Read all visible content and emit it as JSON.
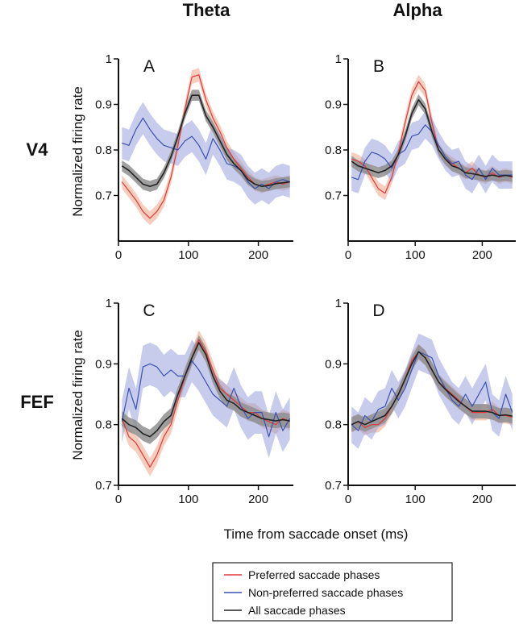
{
  "figure": {
    "column_titles": [
      "Theta",
      "Alpha"
    ],
    "row_titles": [
      "V4",
      "FEF"
    ],
    "xlabel": "Time from saccade onset (ms)",
    "ylabel": "Normalized firing rate"
  },
  "legend": {
    "items": [
      {
        "label": "Preferred saccade phases",
        "color": "#e0383a"
      },
      {
        "label": "Non-preferred saccade phases",
        "color": "#3a52b0"
      },
      {
        "label": "All saccade phases",
        "color": "#222222"
      }
    ]
  },
  "chart_data": [
    {
      "type": "line",
      "panel": "A",
      "column": "Theta",
      "row": "V4",
      "xlim": [
        0,
        250
      ],
      "ylim": [
        0.6,
        1.0
      ],
      "xticks": [
        0,
        100,
        200
      ],
      "yticks": [
        0.7,
        0.8,
        0.9,
        1.0
      ],
      "ytick_labels": [
        "0.7",
        "0.8",
        "0.9",
        "1"
      ],
      "x": [
        5,
        15,
        25,
        35,
        45,
        55,
        65,
        75,
        85,
        95,
        105,
        115,
        125,
        135,
        145,
        155,
        165,
        175,
        185,
        195,
        205,
        215,
        225,
        235,
        245
      ],
      "series": [
        {
          "name": "Preferred saccade phases",
          "color": "#e0383a",
          "band_color": "#f0a486",
          "values": [
            0.73,
            0.71,
            0.69,
            0.665,
            0.65,
            0.665,
            0.69,
            0.74,
            0.81,
            0.89,
            0.96,
            0.965,
            0.91,
            0.87,
            0.84,
            0.805,
            0.78,
            0.76,
            0.74,
            0.725,
            0.72,
            0.725,
            0.73,
            0.725,
            0.73
          ],
          "band": 0.015
        },
        {
          "name": "Non-preferred saccade phases",
          "color": "#3a52b0",
          "band_color": "#9aa3dd",
          "values": [
            0.815,
            0.81,
            0.845,
            0.87,
            0.845,
            0.825,
            0.81,
            0.805,
            0.8,
            0.82,
            0.83,
            0.81,
            0.78,
            0.825,
            0.8,
            0.77,
            0.765,
            0.755,
            0.73,
            0.715,
            0.725,
            0.715,
            0.73,
            0.735,
            0.73
          ],
          "band": 0.035
        },
        {
          "name": "All saccade phases",
          "color": "#222222",
          "band_color": "#8f8f8f",
          "values": [
            0.765,
            0.755,
            0.74,
            0.725,
            0.72,
            0.725,
            0.75,
            0.785,
            0.83,
            0.88,
            0.92,
            0.92,
            0.875,
            0.85,
            0.82,
            0.79,
            0.77,
            0.755,
            0.735,
            0.725,
            0.72,
            0.722,
            0.726,
            0.728,
            0.73
          ],
          "band": 0.012
        }
      ]
    },
    {
      "type": "line",
      "panel": "B",
      "column": "Alpha",
      "row": "V4",
      "xlim": [
        0,
        250
      ],
      "ylim": [
        0.6,
        1.0
      ],
      "xticks": [
        0,
        100,
        200
      ],
      "yticks": [
        0.7,
        0.8,
        0.9,
        1.0
      ],
      "ytick_labels": [
        "0.7",
        "0.8",
        "0.9",
        "1"
      ],
      "x": [
        5,
        15,
        25,
        35,
        45,
        55,
        65,
        75,
        85,
        95,
        105,
        115,
        125,
        135,
        145,
        155,
        165,
        175,
        185,
        195,
        205,
        215,
        225,
        235,
        245
      ],
      "series": [
        {
          "name": "Preferred saccade phases",
          "color": "#e0383a",
          "band_color": "#f0a486",
          "values": [
            0.78,
            0.775,
            0.765,
            0.74,
            0.715,
            0.705,
            0.74,
            0.795,
            0.86,
            0.92,
            0.95,
            0.93,
            0.86,
            0.8,
            0.78,
            0.77,
            0.76,
            0.75,
            0.76,
            0.745,
            0.74,
            0.75,
            0.74,
            0.745,
            0.74
          ],
          "band": 0.015
        },
        {
          "name": "Non-preferred saccade phases",
          "color": "#3a52b0",
          "band_color": "#9aa3dd",
          "values": [
            0.74,
            0.735,
            0.775,
            0.795,
            0.79,
            0.78,
            0.76,
            0.79,
            0.8,
            0.83,
            0.835,
            0.855,
            0.84,
            0.81,
            0.785,
            0.77,
            0.775,
            0.745,
            0.735,
            0.76,
            0.735,
            0.76,
            0.745,
            0.745,
            0.745
          ],
          "band": 0.03
        },
        {
          "name": "All saccade phases",
          "color": "#222222",
          "band_color": "#8f8f8f",
          "values": [
            0.775,
            0.765,
            0.76,
            0.755,
            0.75,
            0.755,
            0.765,
            0.79,
            0.83,
            0.88,
            0.91,
            0.89,
            0.84,
            0.8,
            0.78,
            0.765,
            0.76,
            0.75,
            0.748,
            0.745,
            0.742,
            0.745,
            0.742,
            0.744,
            0.742
          ],
          "band": 0.012
        }
      ]
    },
    {
      "type": "line",
      "panel": "C",
      "column": "Theta",
      "row": "FEF",
      "xlim": [
        0,
        250
      ],
      "ylim": [
        0.7,
        1.0
      ],
      "xticks": [
        0,
        100,
        200
      ],
      "yticks": [
        0.7,
        0.8,
        0.9,
        1.0
      ],
      "ytick_labels": [
        "0.7",
        "0.8",
        "0.9",
        "1"
      ],
      "x": [
        5,
        15,
        25,
        35,
        45,
        55,
        65,
        75,
        85,
        95,
        105,
        115,
        125,
        135,
        145,
        155,
        165,
        175,
        185,
        195,
        205,
        215,
        225,
        235,
        245
      ],
      "series": [
        {
          "name": "Preferred saccade phases",
          "color": "#e0383a",
          "band_color": "#f0a486",
          "values": [
            0.81,
            0.78,
            0.77,
            0.75,
            0.73,
            0.75,
            0.78,
            0.8,
            0.84,
            0.88,
            0.91,
            0.94,
            0.92,
            0.89,
            0.86,
            0.85,
            0.84,
            0.83,
            0.82,
            0.82,
            0.81,
            0.805,
            0.8,
            0.81,
            0.805
          ],
          "band": 0.015
        },
        {
          "name": "Non-preferred saccade phases",
          "color": "#3a52b0",
          "band_color": "#9aa3dd",
          "values": [
            0.805,
            0.86,
            0.825,
            0.895,
            0.9,
            0.895,
            0.88,
            0.89,
            0.88,
            0.88,
            0.905,
            0.89,
            0.87,
            0.85,
            0.84,
            0.83,
            0.86,
            0.83,
            0.81,
            0.82,
            0.82,
            0.78,
            0.82,
            0.79,
            0.81
          ],
          "band": 0.035
        },
        {
          "name": "All saccade phases",
          "color": "#222222",
          "band_color": "#8f8f8f",
          "values": [
            0.81,
            0.8,
            0.795,
            0.785,
            0.78,
            0.79,
            0.805,
            0.815,
            0.85,
            0.88,
            0.91,
            0.935,
            0.915,
            0.88,
            0.855,
            0.84,
            0.835,
            0.825,
            0.82,
            0.815,
            0.81,
            0.808,
            0.806,
            0.808,
            0.806
          ],
          "band": 0.012
        }
      ]
    },
    {
      "type": "line",
      "panel": "D",
      "column": "Alpha",
      "row": "FEF",
      "xlim": [
        0,
        250
      ],
      "ylim": [
        0.7,
        1.0
      ],
      "xticks": [
        0,
        100,
        200
      ],
      "yticks": [
        0.7,
        0.8,
        0.9,
        1.0
      ],
      "ytick_labels": [
        "0.7",
        "0.8",
        "0.9",
        "1"
      ],
      "x": [
        5,
        15,
        25,
        35,
        45,
        55,
        65,
        75,
        85,
        95,
        105,
        115,
        125,
        135,
        145,
        155,
        165,
        175,
        185,
        195,
        205,
        215,
        225,
        235,
        245
      ],
      "series": [
        {
          "name": "Preferred saccade phases",
          "color": "#e0383a",
          "band_color": "#f0a486",
          "values": [
            0.8,
            0.805,
            0.795,
            0.8,
            0.8,
            0.81,
            0.83,
            0.85,
            0.875,
            0.905,
            0.92,
            0.91,
            0.89,
            0.87,
            0.86,
            0.85,
            0.84,
            0.83,
            0.82,
            0.82,
            0.82,
            0.825,
            0.815,
            0.815,
            0.812
          ],
          "band": 0.013
        },
        {
          "name": "Non-preferred saccade phases",
          "color": "#3a52b0",
          "band_color": "#9aa3dd",
          "values": [
            0.8,
            0.79,
            0.815,
            0.805,
            0.825,
            0.83,
            0.86,
            0.84,
            0.86,
            0.89,
            0.92,
            0.915,
            0.91,
            0.88,
            0.86,
            0.84,
            0.83,
            0.85,
            0.83,
            0.85,
            0.87,
            0.82,
            0.81,
            0.85,
            0.82
          ],
          "band": 0.03
        },
        {
          "name": "All saccade phases",
          "color": "#222222",
          "band_color": "#8f8f8f",
          "values": [
            0.8,
            0.805,
            0.8,
            0.805,
            0.81,
            0.815,
            0.83,
            0.85,
            0.875,
            0.9,
            0.92,
            0.91,
            0.89,
            0.87,
            0.858,
            0.848,
            0.838,
            0.83,
            0.822,
            0.822,
            0.822,
            0.82,
            0.815,
            0.816,
            0.814
          ],
          "band": 0.012
        }
      ]
    }
  ]
}
